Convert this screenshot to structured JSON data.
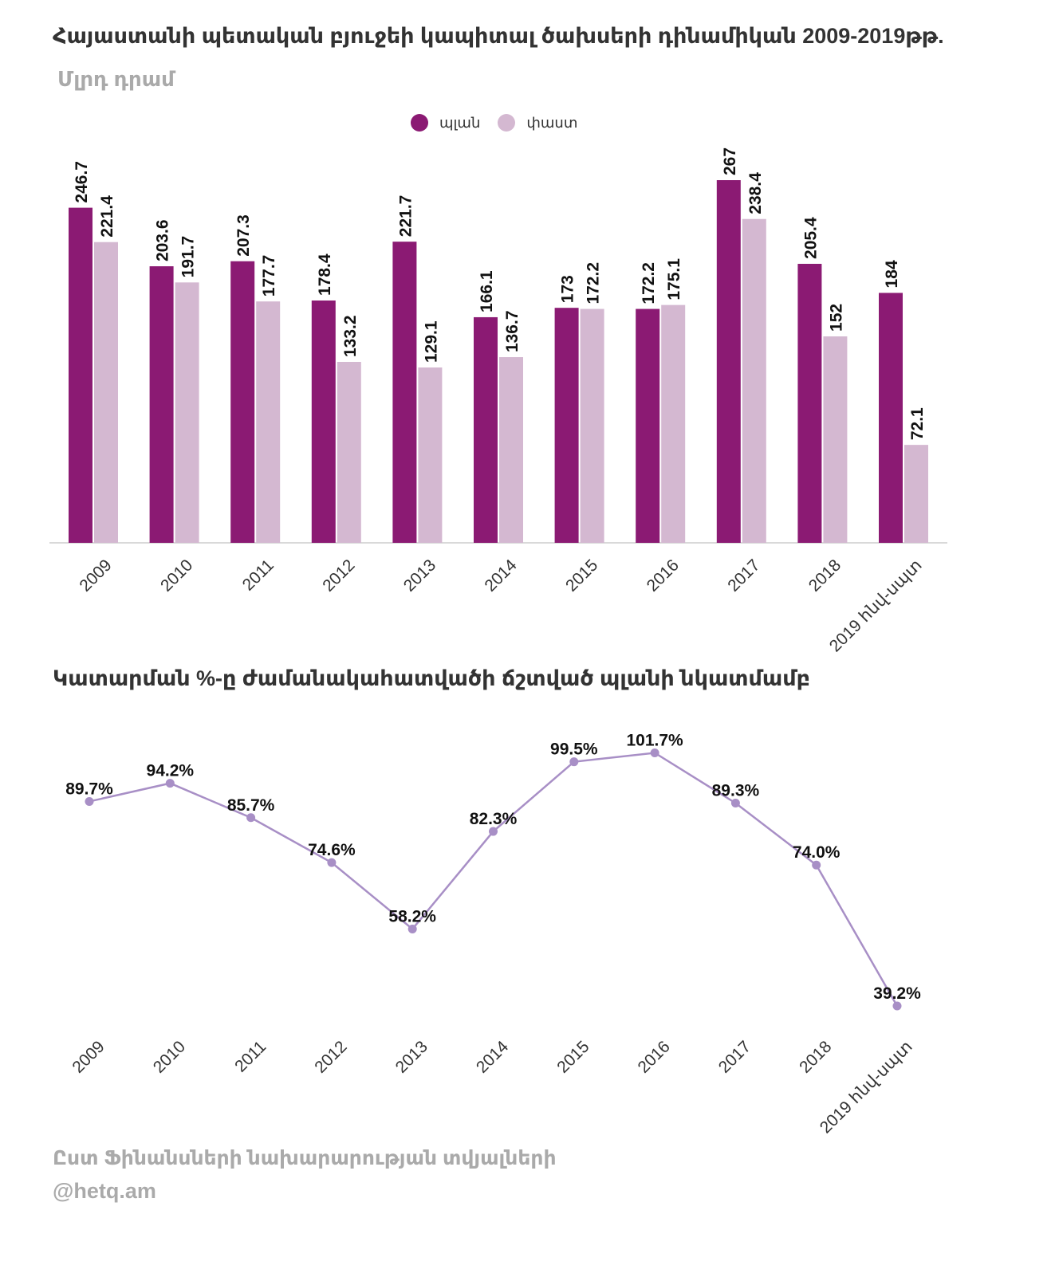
{
  "header": {
    "title": "Հայաստանի պետական բյուջեի կապիտալ ծախսերի դինամիկան 2009-2019թթ.",
    "subtitle": "Մլրդ դրամ"
  },
  "section2": {
    "title": "Կատարման %-ը ժամանակահատվածի ճշտված պլանի նկատմամբ"
  },
  "footer": {
    "source": "Ըստ Ֆինանսների նախարարության տվյալների",
    "credit": "@hetq.am"
  },
  "colors": {
    "plan": "#8b1a73",
    "actual": "#d4b8d1",
    "line": "#a88fc6",
    "axis": "#d9d9d9"
  },
  "chart_data": [
    {
      "type": "bar",
      "title": "Հայաստանի պետական բյուջեի կապիտալ ծախսերի դինամիկան 2009-2019թթ.",
      "subtitle": "Մլրդ դրամ",
      "categories": [
        "2009",
        "2010",
        "2011",
        "2012",
        "2013",
        "2014",
        "2015",
        "2016",
        "2017",
        "2018",
        "2019  հնվ-սպտ"
      ],
      "series": [
        {
          "name": "պլան",
          "values": [
            246.7,
            203.6,
            207.3,
            178.4,
            221.7,
            166.1,
            173,
            172.2,
            267,
            205.4,
            184
          ]
        },
        {
          "name": "փաստ",
          "values": [
            221.4,
            191.7,
            177.7,
            133.2,
            129.1,
            136.7,
            172.2,
            175.1,
            238.4,
            152,
            72.1
          ]
        }
      ],
      "value_labels": [
        [
          "246.7",
          "203.6",
          "207.3",
          "178.4",
          "221.7",
          "166.1",
          "173",
          "172.2",
          "267",
          "205.4",
          "184"
        ],
        [
          "221.4",
          "191.7",
          "177.7",
          "133.2",
          "129.1",
          "136.7",
          "172.2",
          "175.1",
          "238.4",
          "152",
          "72.1"
        ]
      ],
      "ylim": [
        0,
        300
      ],
      "legend": "top-center",
      "grid": false
    },
    {
      "type": "line",
      "title": "Կատարման %-ը ժամանակահատվածի ճշտված պլանի նկատմամբ",
      "categories": [
        "2009",
        "2010",
        "2011",
        "2012",
        "2013",
        "2014",
        "2015",
        "2016",
        "2017",
        "2018",
        "2019 հնվ-սպտ"
      ],
      "values": [
        89.7,
        94.2,
        85.7,
        74.6,
        58.2,
        82.3,
        99.5,
        101.7,
        89.3,
        74.0,
        39.2
      ],
      "value_labels": [
        "89.7%",
        "94.2%",
        "85.7%",
        "74.6%",
        "58.2%",
        "82.3%",
        "99.5%",
        "101.7%",
        "89.3%",
        "74.0%",
        "39.2%"
      ],
      "grid": false
    }
  ]
}
